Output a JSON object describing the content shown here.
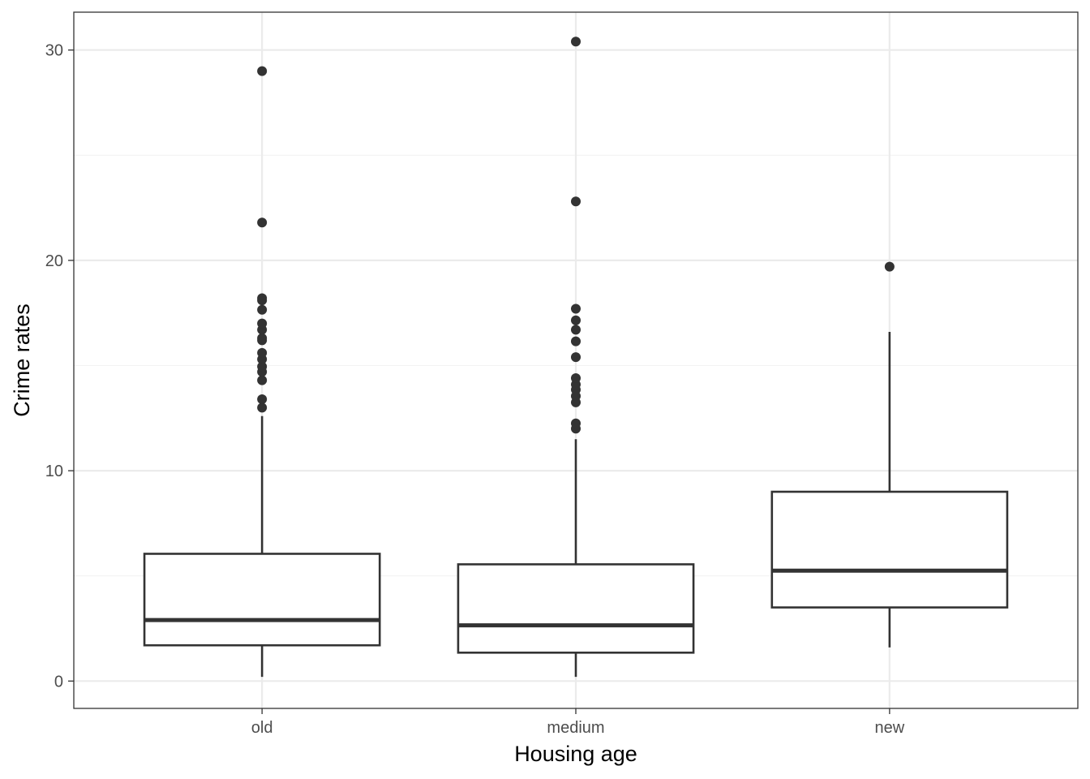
{
  "chart_data": {
    "type": "boxplot",
    "title": "",
    "xlabel": "Housing age",
    "ylabel": "Crime rates",
    "ylim": [
      -1.3,
      31.8
    ],
    "yticks": [
      0,
      10,
      20,
      30
    ],
    "ytick_labels": [
      "0",
      "10",
      "20",
      "30"
    ],
    "minor_yticks": [
      5,
      15,
      25
    ],
    "grid": true,
    "legend": "none",
    "categories": [
      "old",
      "medium",
      "new"
    ],
    "boxes": [
      {
        "category": "old",
        "whisker_low": 0.2,
        "q1": 1.7,
        "median": 2.9,
        "q3": 6.05,
        "whisker_high": 12.6,
        "outliers": [
          13.0,
          13.4,
          14.3,
          14.7,
          14.95,
          15.3,
          15.6,
          16.2,
          16.3,
          16.7,
          17.0,
          17.65,
          18.1,
          18.2,
          21.8,
          29.0
        ]
      },
      {
        "category": "medium",
        "whisker_low": 0.2,
        "q1": 1.35,
        "median": 2.65,
        "q3": 5.55,
        "whisker_high": 11.5,
        "outliers": [
          12.0,
          12.25,
          13.25,
          13.55,
          13.85,
          14.1,
          14.4,
          15.4,
          16.15,
          16.7,
          17.15,
          17.7,
          22.8,
          30.4
        ]
      },
      {
        "category": "new",
        "whisker_low": 1.6,
        "q1": 3.5,
        "median": 5.25,
        "q3": 9.0,
        "whisker_high": 16.6,
        "outliers": [
          19.7
        ]
      }
    ],
    "colors": {
      "panel_border": "#333333",
      "grid_major": "#ebebeb",
      "grid_minor": "#f3f3f3",
      "box_line": "#333333",
      "box_fill": "#ffffff",
      "point": "#333333"
    }
  }
}
